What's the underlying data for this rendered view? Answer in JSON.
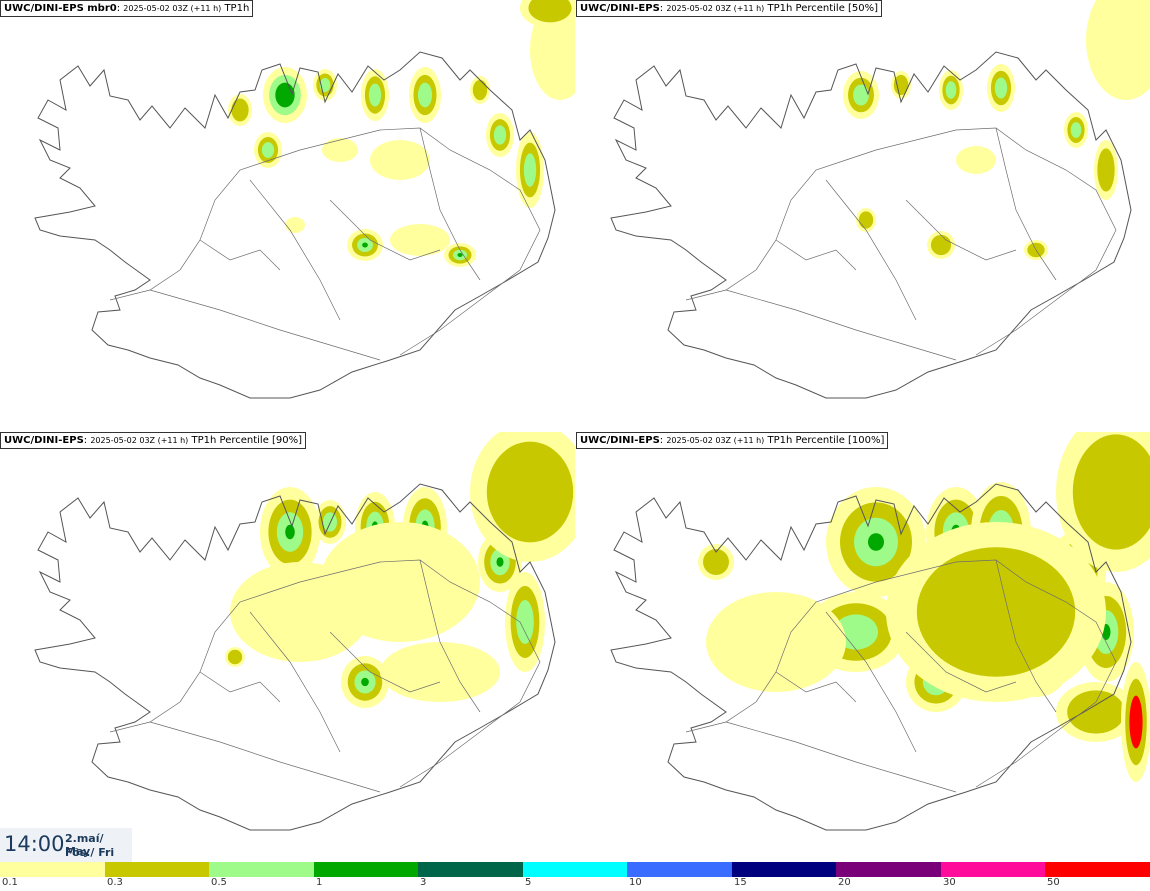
{
  "panels": [
    {
      "source": "UWC/DINI-EPS mbr0",
      "run": "2025-05-02 03Z (+11 h)",
      "field": "TP1h"
    },
    {
      "source": "UWC/DINI-EPS",
      "run": "2025-05-02 03Z (+11 h)",
      "field": "TP1h Percentile [50%]"
    },
    {
      "source": "UWC/DINI-EPS",
      "run": "2025-05-02 03Z (+11 h)",
      "field": "TP1h Percentile [90%]"
    },
    {
      "source": "UWC/DINI-EPS",
      "run": "2025-05-02 03Z (+11 h)",
      "field": "TP1h Percentile [100%]"
    }
  ],
  "valid_time": {
    "time": "14:00",
    "date_line1": "2.maí/ May",
    "date_line2": "Fös./ Fri"
  },
  "legend": {
    "labels": [
      "0.1",
      "0.3",
      "0.5",
      "1",
      "3",
      "5",
      "10",
      "15",
      "20",
      "30",
      "50"
    ],
    "colors": [
      "#ffff9e",
      "#c8c800",
      "#9efb8a",
      "#00a800",
      "#00664a",
      "#00ffff",
      "#3a6cff",
      "#00007e",
      "#7a007a",
      "#ff0c9a",
      "#ff0000"
    ]
  },
  "colors": {
    "coast": "#555555",
    "roads": "#6e6e6e",
    "background": "#ffffff"
  }
}
